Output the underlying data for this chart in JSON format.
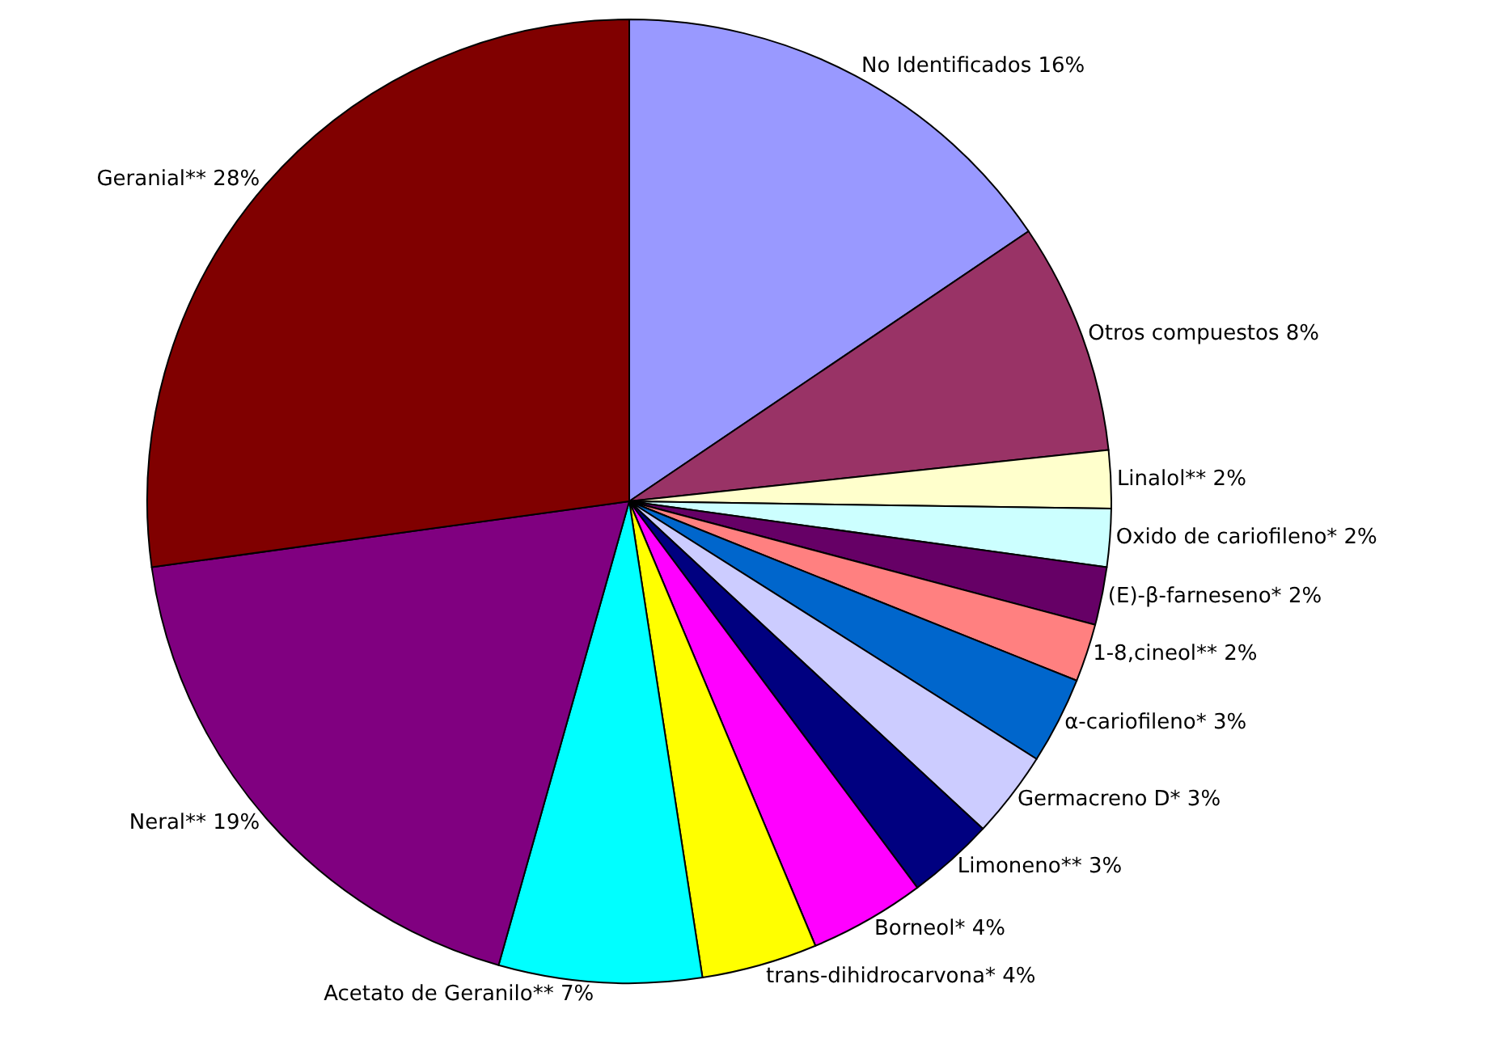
{
  "chart_data": {
    "type": "pie",
    "categories": [
      "No Identificados",
      "Otros compuestos",
      "Linalol**",
      "Oxido de cariofileno*",
      "(E)-β-farneseno*",
      "1-8,cineol**",
      "α-cariofileno*",
      "Germacreno D*",
      "Limoneno**",
      "Borneol*",
      "trans-dihidrocarvona*",
      "Acetato de Geranilo**",
      "Neral**",
      "Geranial**"
    ],
    "values": [
      16,
      8,
      2,
      2,
      2,
      2,
      3,
      3,
      3,
      4,
      4,
      7,
      19,
      28
    ],
    "value_labels": [
      "16%",
      "8%",
      "2%",
      "2%",
      "2%",
      "2%",
      "3%",
      "3%",
      "3%",
      "4%",
      "4%",
      "7%",
      "19%",
      "28%"
    ],
    "colors": [
      "#9999ff",
      "#993366",
      "#ffffcc",
      "#ccffff",
      "#660066",
      "#ff8080",
      "#0066cc",
      "#ccccff",
      "#000080",
      "#ff00ff",
      "#ffff00",
      "#00ffff",
      "#800080",
      "#800000"
    ]
  }
}
